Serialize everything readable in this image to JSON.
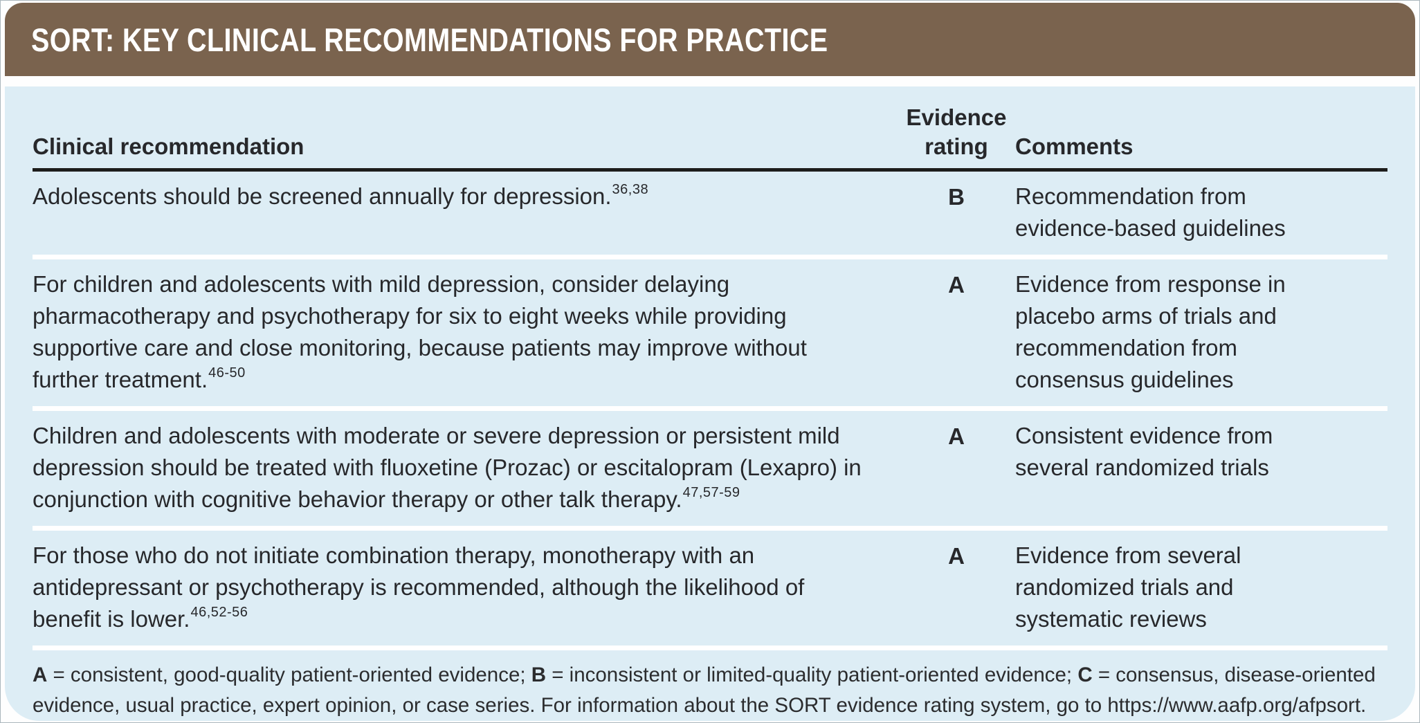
{
  "colors": {
    "header_bg": "#7a634e",
    "panel_bg": "#ddedf5",
    "header_rule": "#1d1d1b",
    "row_separator": "#ffffff",
    "title_text": "#ffffff",
    "body_text": "#27282b"
  },
  "header": {
    "title": "SORT: KEY CLINICAL RECOMMENDATIONS FOR PRACTICE"
  },
  "table": {
    "headers": {
      "recommendation": "Clinical recommendation",
      "rating": "Evidence rating",
      "comments": "Comments"
    },
    "rows": [
      {
        "recommendation": "Adolescents should be screened annually for depression.",
        "ref": "36,38",
        "rating": "B",
        "comments": "Recommendation from evidence-based guidelines"
      },
      {
        "recommendation": "For children and adolescents with mild depression, consider delaying pharmacotherapy and psychotherapy for six to eight weeks while providing supportive care and close monitoring, because patients may improve without further treatment.",
        "ref": "46-50",
        "rating": "A",
        "comments": "Evidence from response in placebo arms of trials and recommendation from consensus guidelines"
      },
      {
        "recommendation": "Children and adolescents with moderate or severe depression or persistent mild depression should be treated with fluoxetine (Prozac) or escitalopram (Lexapro) in conjunction with cognitive behavior therapy or other talk therapy.",
        "ref": "47,57-59",
        "rating": "A",
        "comments": "Consistent evidence from several randomized trials"
      },
      {
        "recommendation": "For those who do not initiate combination therapy, monotherapy with an antidepressant or psychotherapy is recommended, although the likelihood of benefit is lower.",
        "ref": "46,52-56",
        "rating": "A",
        "comments": "Evidence from several randomized trials and systematic reviews"
      }
    ]
  },
  "footnote": {
    "segments": [
      {
        "text": "A",
        "bold": true
      },
      {
        "text": " = consistent, good-quality patient-oriented evidence; ",
        "bold": false
      },
      {
        "text": "B",
        "bold": true
      },
      {
        "text": " = inconsistent or limited-quality patient-oriented evidence; ",
        "bold": false
      },
      {
        "text": "C",
        "bold": true
      },
      {
        "text": " = consensus, disease-oriented evidence, usual practice, expert opinion, or case series. For information about the SORT evidence rating system, go to https://www.aafp.org/afpsort.",
        "bold": false
      }
    ]
  }
}
